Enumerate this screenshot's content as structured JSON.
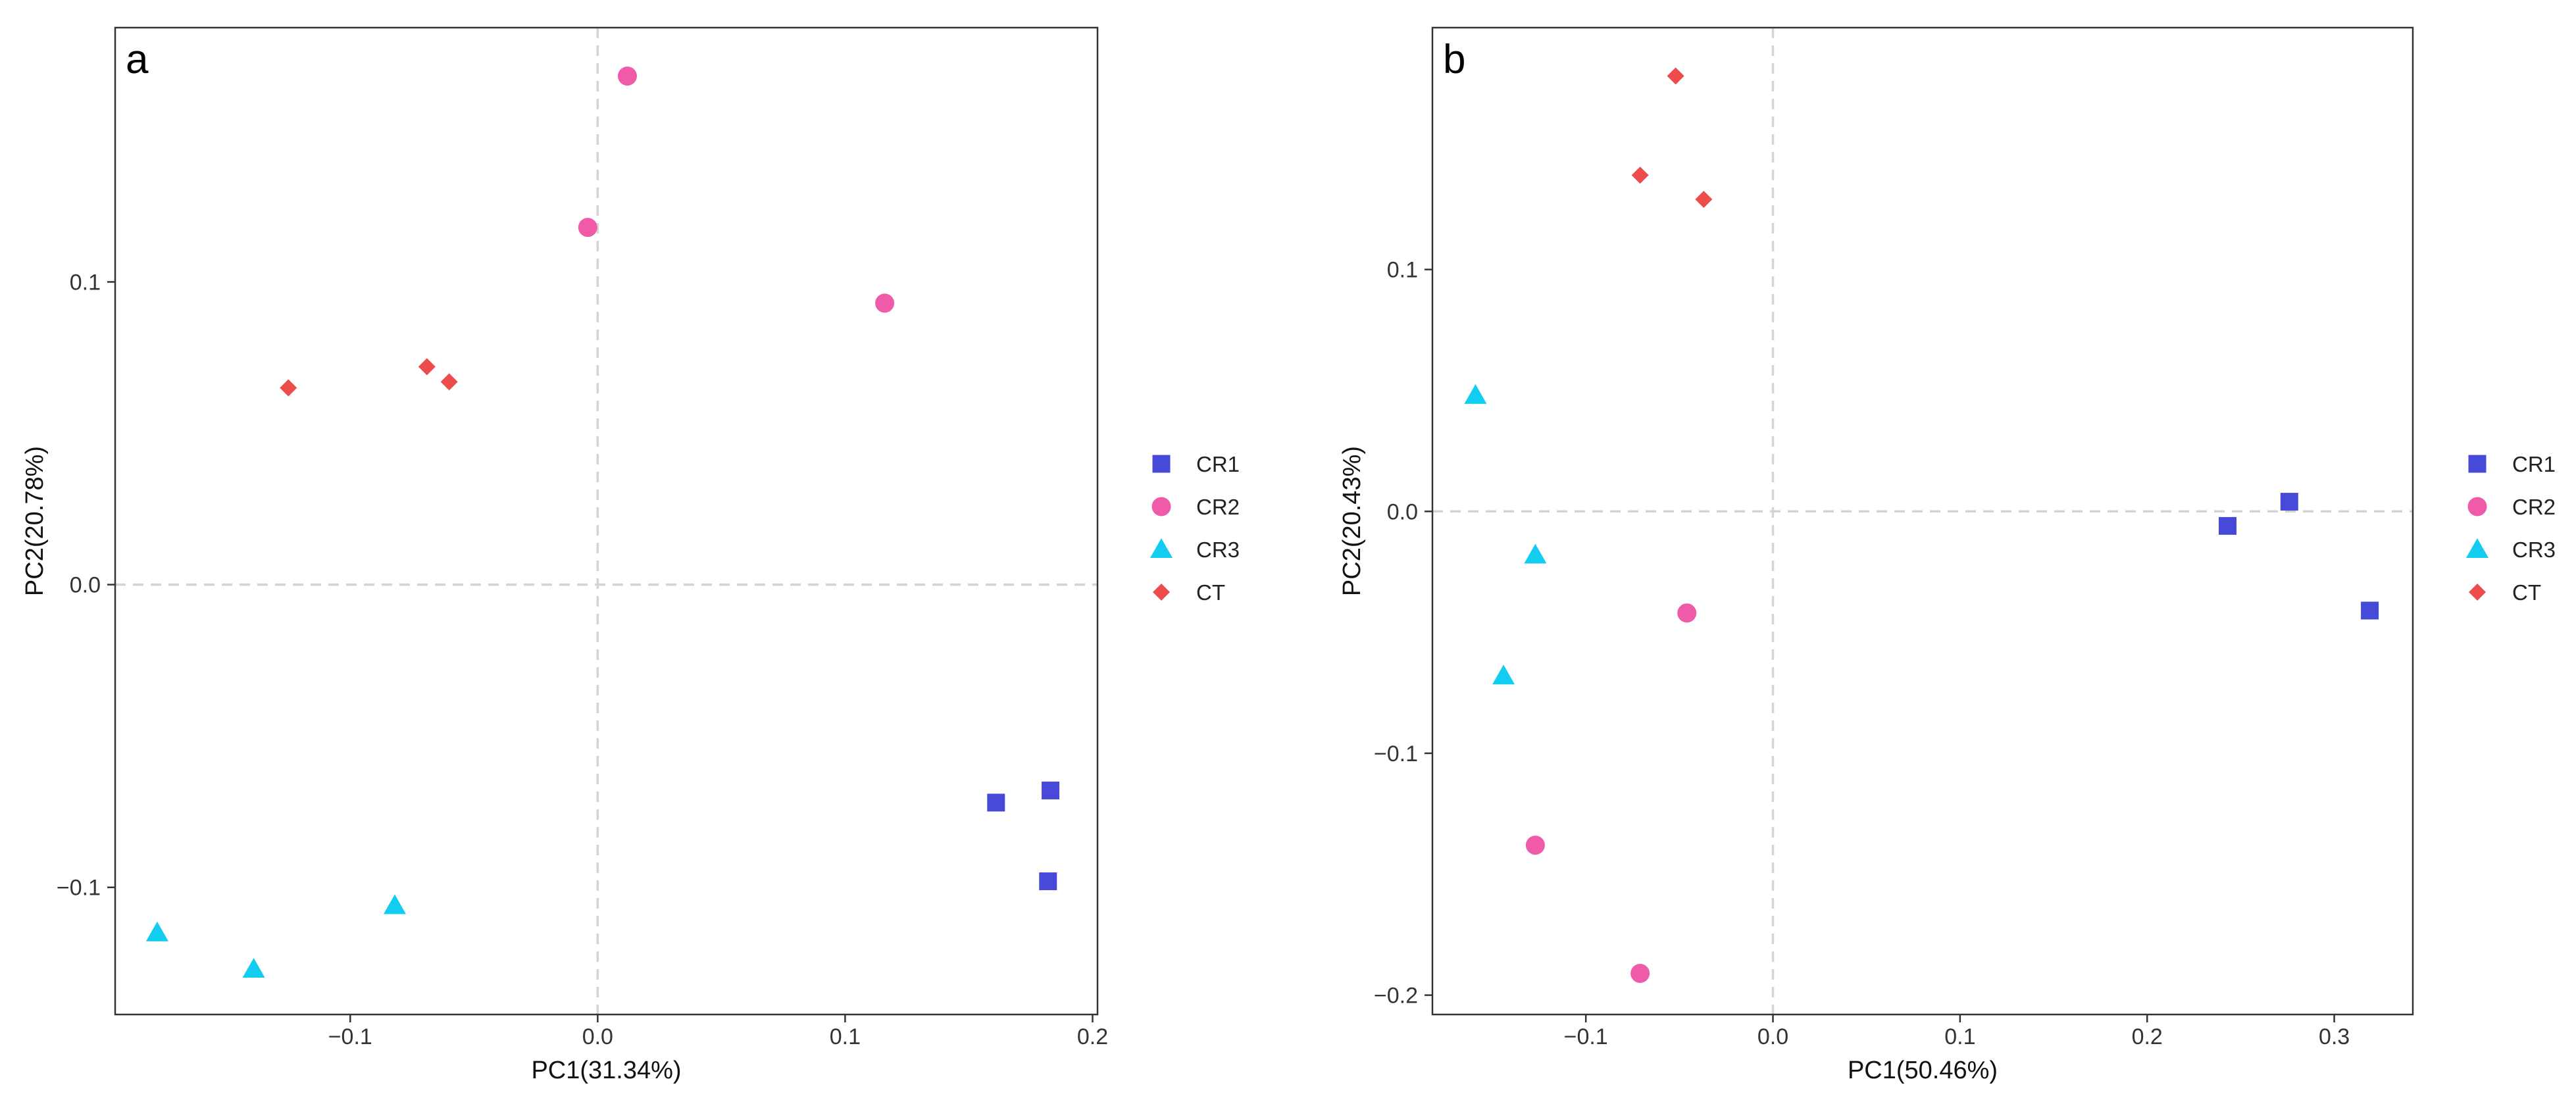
{
  "chart_data": [
    {
      "type": "scatter",
      "panel_label": "a",
      "xlabel": "PC1(31.34%)",
      "ylabel": "PC2(20.78%)",
      "xlim": [
        -0.195,
        0.202
      ],
      "ylim": [
        -0.142,
        0.184
      ],
      "x_ticks": [
        -0.1,
        0,
        0.1,
        0.2
      ],
      "x_tick_labels": [
        "−0.1",
        "0.0",
        "0.1",
        "0.2"
      ],
      "y_ticks": [
        -0.1,
        0,
        0.1
      ],
      "y_tick_labels": [
        "−0.1",
        "0.0",
        "0.1"
      ],
      "grid": false,
      "reference_lines": "dashed lines at x = 0 and y = 0",
      "legend_position": "right",
      "series": [
        {
          "name": "CR1",
          "marker": "square",
          "color": "#4749d8",
          "points": [
            [
              0.161,
              -0.072
            ],
            [
              0.183,
              -0.068
            ],
            [
              0.182,
              -0.098
            ]
          ]
        },
        {
          "name": "CR2",
          "marker": "circle",
          "color": "#ef5aa9",
          "points": [
            [
              0.012,
              0.168
            ],
            [
              -0.004,
              0.118
            ],
            [
              0.116,
              0.093
            ]
          ]
        },
        {
          "name": "CR3",
          "marker": "triangle",
          "color": "#12cdef",
          "points": [
            [
              -0.178,
              -0.115
            ],
            [
              -0.139,
              -0.127
            ],
            [
              -0.082,
              -0.106
            ]
          ]
        },
        {
          "name": "CT",
          "marker": "diamond",
          "color": "#ec4c4c",
          "points": [
            [
              -0.125,
              0.065
            ],
            [
              -0.069,
              0.072
            ],
            [
              -0.06,
              0.067
            ]
          ]
        }
      ]
    },
    {
      "type": "scatter",
      "panel_label": "b",
      "xlabel": "PC1(50.46%)",
      "ylabel": "PC2(20.43%)",
      "xlim": [
        -0.182,
        0.342
      ],
      "ylim": [
        -0.208,
        0.2
      ],
      "x_ticks": [
        -0.1,
        0,
        0.1,
        0.2,
        0.3
      ],
      "x_tick_labels": [
        "−0.1",
        "0.0",
        "0.1",
        "0.2",
        "0.3"
      ],
      "y_ticks": [
        -0.2,
        -0.1,
        0,
        0.1
      ],
      "y_tick_labels": [
        "−0.2",
        "−0.1",
        "0.0",
        "0.1"
      ],
      "grid": false,
      "reference_lines": "dashed lines at x = 0 and y = 0",
      "legend_position": "right",
      "series": [
        {
          "name": "CR1",
          "marker": "square",
          "color": "#4749d8",
          "points": [
            [
              0.243,
              -0.006
            ],
            [
              0.276,
              0.004
            ],
            [
              0.319,
              -0.041
            ]
          ]
        },
        {
          "name": "CR2",
          "marker": "circle",
          "color": "#ef5aa9",
          "points": [
            [
              -0.046,
              -0.042
            ],
            [
              -0.127,
              -0.138
            ],
            [
              -0.071,
              -0.191
            ]
          ]
        },
        {
          "name": "CR3",
          "marker": "triangle",
          "color": "#12cdef",
          "points": [
            [
              -0.159,
              0.048
            ],
            [
              -0.127,
              -0.018
            ],
            [
              -0.144,
              -0.068
            ]
          ]
        },
        {
          "name": "CT",
          "marker": "diamond",
          "color": "#ec4c4c",
          "points": [
            [
              -0.052,
              0.18
            ],
            [
              -0.071,
              0.139
            ],
            [
              -0.037,
              0.129
            ]
          ]
        }
      ]
    }
  ]
}
